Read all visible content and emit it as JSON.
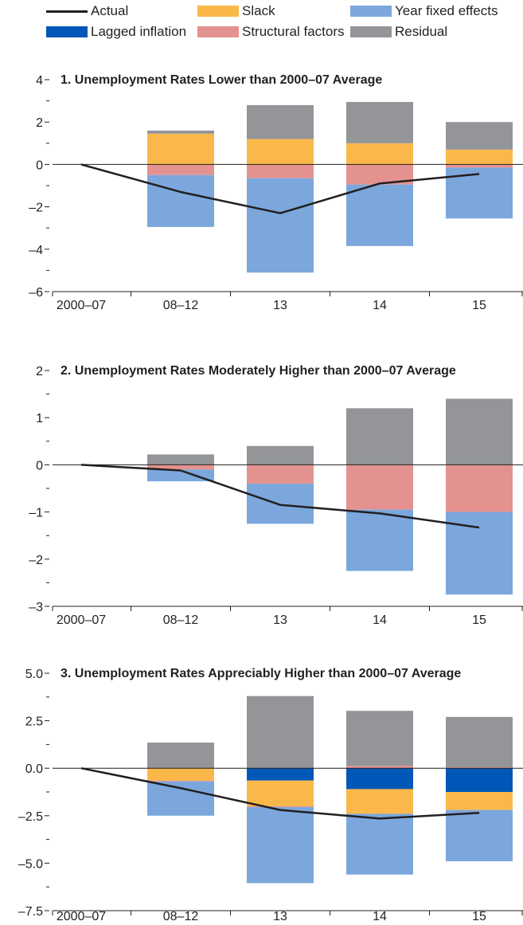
{
  "legend": [
    {
      "key": "actual",
      "label": "Actual",
      "type": "line",
      "color": "#231f20"
    },
    {
      "key": "slack",
      "label": "Slack",
      "type": "bar",
      "color": "#fbb84a"
    },
    {
      "key": "year_fe",
      "label": "Year fixed effects",
      "type": "bar",
      "color": "#7ba7dc"
    },
    {
      "key": "lagged",
      "label": "Lagged inflation",
      "type": "bar",
      "color": "#0057b8"
    },
    {
      "key": "structural",
      "label": "Structural factors",
      "type": "bar",
      "color": "#e4928f"
    },
    {
      "key": "residual",
      "label": "Residual",
      "type": "bar",
      "color": "#939598"
    }
  ],
  "chart_data": [
    {
      "type": "bar",
      "title": "1. Unemployment Rates Lower than 2000–07 Average",
      "categories": [
        "2000–07",
        "08–12",
        "13",
        "14",
        "15"
      ],
      "ylim": [
        -6,
        4
      ],
      "yticks": [
        "4",
        "2",
        "0",
        "–2",
        "–4",
        "–6"
      ],
      "ytick_values": [
        4,
        2,
        0,
        -2,
        -4,
        -6
      ],
      "series": [
        {
          "name": "Lagged inflation",
          "key": "lagged",
          "values": [
            0,
            0,
            0,
            0,
            0
          ]
        },
        {
          "name": "Slack",
          "key": "slack",
          "values": [
            0,
            1.45,
            1.2,
            1.0,
            0.7
          ]
        },
        {
          "name": "Structural factors",
          "key": "structural",
          "values": [
            0,
            -0.5,
            -0.65,
            -0.95,
            -0.15
          ]
        },
        {
          "name": "Year fixed effects",
          "key": "year_fe",
          "values": [
            0,
            -2.45,
            -4.45,
            -2.9,
            -2.4
          ]
        },
        {
          "name": "Residual",
          "key": "residual",
          "values": [
            0,
            0.15,
            1.6,
            1.95,
            1.3
          ]
        }
      ],
      "actual": [
        0,
        -1.3,
        -2.3,
        -0.9,
        -0.45
      ]
    },
    {
      "type": "bar",
      "title": "2. Unemployment Rates Moderately Higher than 2000–07 Average",
      "categories": [
        "2000–07",
        "08–12",
        "13",
        "14",
        "15"
      ],
      "ylim": [
        -3,
        2
      ],
      "yticks": [
        "2",
        "1",
        "0",
        "–1",
        "–2",
        "–3"
      ],
      "ytick_values": [
        2,
        1,
        0,
        -1,
        -2,
        -3
      ],
      "series": [
        {
          "name": "Lagged inflation",
          "key": "lagged",
          "values": [
            0,
            0,
            0,
            0,
            0
          ]
        },
        {
          "name": "Slack",
          "key": "slack",
          "values": [
            0,
            0,
            0,
            0,
            0
          ]
        },
        {
          "name": "Structural factors",
          "key": "structural",
          "values": [
            0,
            -0.1,
            -0.4,
            -0.95,
            -1.0
          ]
        },
        {
          "name": "Year fixed effects",
          "key": "year_fe",
          "values": [
            0,
            -0.25,
            -0.85,
            -1.3,
            -1.75
          ]
        },
        {
          "name": "Residual",
          "key": "residual",
          "values": [
            0,
            0.22,
            0.4,
            1.2,
            1.4
          ]
        }
      ],
      "actual": [
        0,
        -0.12,
        -0.85,
        -1.03,
        -1.33
      ]
    },
    {
      "type": "bar",
      "title": "3. Unemployment Rates Appreciably Higher than 2000–07 Average",
      "categories": [
        "2000–07",
        "08–12",
        "13",
        "14",
        "15"
      ],
      "ylim": [
        -7.5,
        5.0
      ],
      "yticks": [
        "5.0",
        "2.5",
        "0.0",
        "–2.5",
        "–5.0",
        "–7.5"
      ],
      "ytick_values": [
        5,
        2.5,
        0,
        -2.5,
        -5,
        -7.5
      ],
      "series": [
        {
          "name": "Lagged inflation",
          "key": "lagged",
          "values": [
            0,
            0,
            -0.65,
            -1.1,
            -1.25
          ]
        },
        {
          "name": "Slack",
          "key": "slack",
          "values": [
            0,
            -0.65,
            -1.35,
            -1.3,
            -0.95
          ]
        },
        {
          "name": "Structural factors",
          "key": "structural",
          "values": [
            0,
            -0.05,
            -0.05,
            0.12,
            0.05
          ]
        },
        {
          "name": "Year fixed effects",
          "key": "year_fe",
          "values": [
            0,
            -1.8,
            -4.0,
            -3.2,
            -2.7
          ]
        },
        {
          "name": "Residual",
          "key": "residual",
          "values": [
            0,
            1.35,
            3.8,
            2.9,
            2.65
          ]
        }
      ],
      "actual": [
        0,
        -1.05,
        -2.2,
        -2.65,
        -2.35
      ]
    }
  ]
}
